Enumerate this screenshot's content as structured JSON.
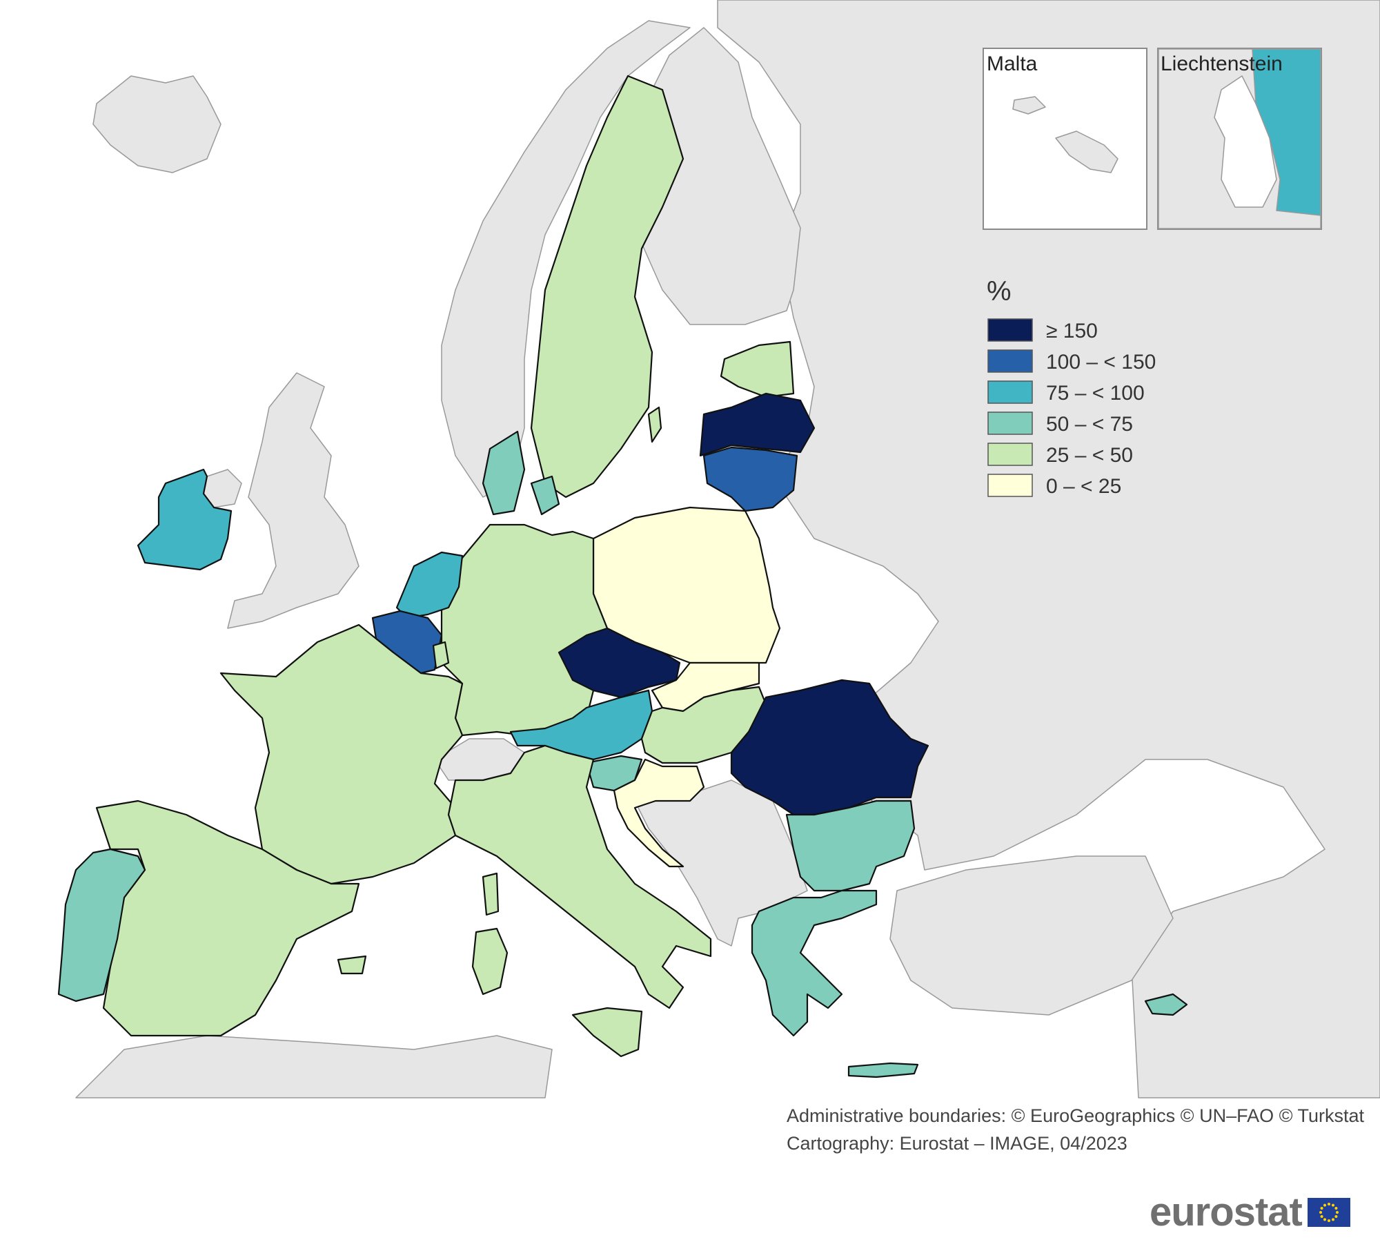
{
  "map": {
    "legend_title": "%",
    "legend": [
      {
        "label": "≥ 150",
        "color": "#0a1d57"
      },
      {
        "label": "100 – < 150",
        "color": "#2660a8"
      },
      {
        "label": "75 – < 100",
        "color": "#42b5c5"
      },
      {
        "label": "50 – < 75",
        "color": "#80cdbb"
      },
      {
        "label": "25 – < 50",
        "color": "#c8e8b4"
      },
      {
        "label": "0 – < 25",
        "color": "#ffffd9"
      }
    ],
    "no_data_color": "#e6e6e6",
    "sea_color": "#ffffff",
    "insets": {
      "malta": "Malta",
      "liechtenstein": "Liechtenstein"
    },
    "countries": [
      {
        "name": "Iceland",
        "class": "no data"
      },
      {
        "name": "Norway",
        "class": "no data"
      },
      {
        "name": "United Kingdom",
        "class": "no data"
      },
      {
        "name": "Ireland",
        "class": "75 – < 100"
      },
      {
        "name": "Portugal",
        "class": "50 – < 75"
      },
      {
        "name": "Spain",
        "class": "25 – < 50"
      },
      {
        "name": "France",
        "class": "25 – < 50"
      },
      {
        "name": "Belgium",
        "class": "100 – < 150"
      },
      {
        "name": "Netherlands",
        "class": "75 – < 100"
      },
      {
        "name": "Luxembourg",
        "class": "25 – < 50"
      },
      {
        "name": "Germany",
        "class": "25 – < 50"
      },
      {
        "name": "Denmark",
        "class": "50 – < 75"
      },
      {
        "name": "Sweden",
        "class": "25 – < 50"
      },
      {
        "name": "Finland",
        "class": "no data"
      },
      {
        "name": "Estonia",
        "class": "25 – < 50"
      },
      {
        "name": "Latvia",
        "class": "≥ 150"
      },
      {
        "name": "Lithuania",
        "class": "100 – < 150"
      },
      {
        "name": "Poland",
        "class": "0 – < 25"
      },
      {
        "name": "Czechia",
        "class": "≥ 150"
      },
      {
        "name": "Slovakia",
        "class": "0 – < 25"
      },
      {
        "name": "Austria",
        "class": "75 – < 100"
      },
      {
        "name": "Switzerland",
        "class": "no data"
      },
      {
        "name": "Liechtenstein",
        "class": "75 – < 100"
      },
      {
        "name": "Italy",
        "class": "25 – < 50"
      },
      {
        "name": "Slovenia",
        "class": "50 – < 75"
      },
      {
        "name": "Croatia",
        "class": "0 – < 25"
      },
      {
        "name": "Hungary",
        "class": "25 – < 50"
      },
      {
        "name": "Romania",
        "class": "≥ 150"
      },
      {
        "name": "Bulgaria",
        "class": "50 – < 75"
      },
      {
        "name": "Greece",
        "class": "50 – < 75"
      },
      {
        "name": "Cyprus",
        "class": "50 – < 75"
      },
      {
        "name": "Malta",
        "class": "no data"
      }
    ]
  },
  "credits": {
    "line1": "Administrative boundaries: © EuroGeographics © UN–FAO © Turkstat",
    "line2": "Cartography: Eurostat – IMAGE, 04/2023"
  },
  "logo": {
    "text": "eurostat"
  }
}
